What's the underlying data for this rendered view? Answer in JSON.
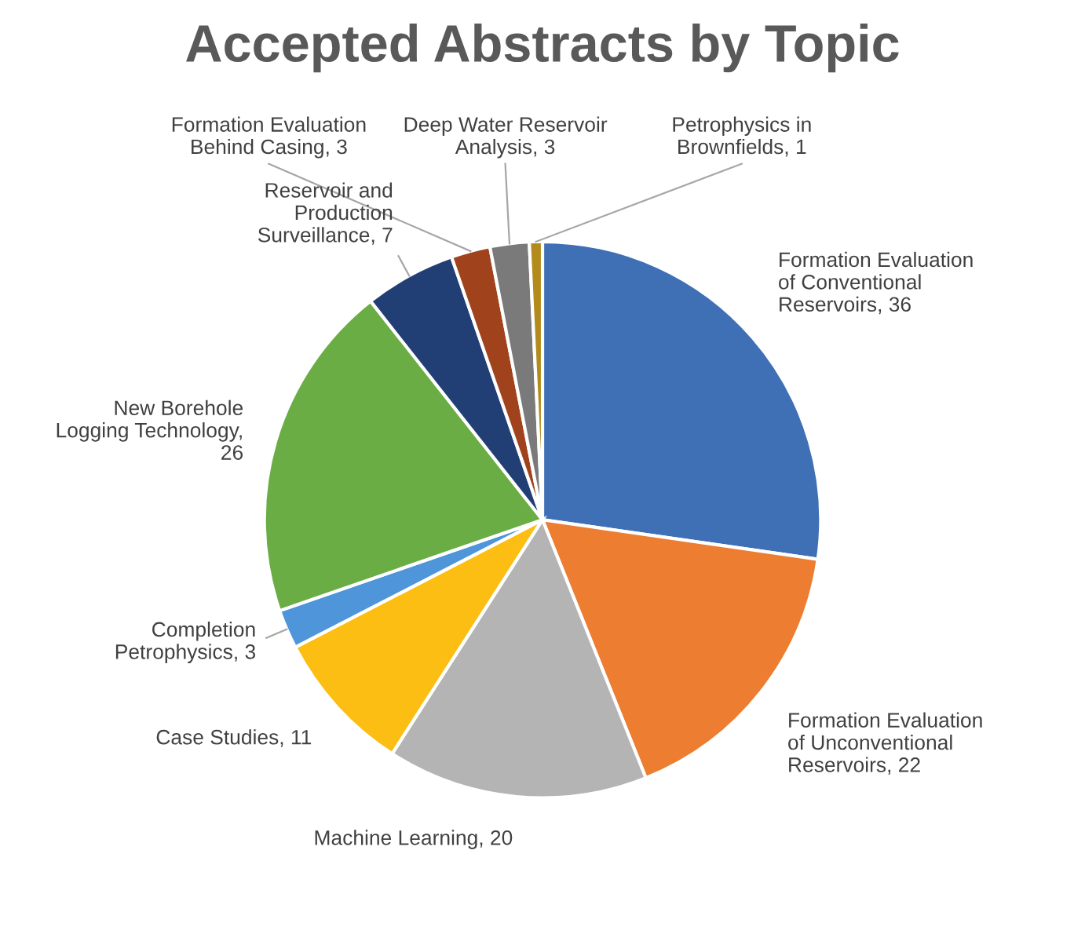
{
  "chart_data": {
    "type": "pie",
    "title": "Accepted Abstracts by Topic",
    "categories": [
      "Formation Evaluation\nof Conventional\nReservoirs, 36",
      "Formation Evaluation\nof Unconventional\nReservoirs, 22",
      "Machine Learning, 20",
      "Case Studies, 11",
      "Completion\nPetrophysics, 3",
      "New Borehole\nLogging Technology,\n26",
      "Reservoir and\nProduction\nSurveillance, 7",
      "Formation Evaluation\nBehind Casing, 3",
      "Deep Water Reservoir\nAnalysis, 3",
      "Petrophysics in\nBrownfields, 1"
    ],
    "values": [
      36,
      22,
      20,
      11,
      3,
      26,
      7,
      3,
      3,
      1
    ],
    "colors": [
      "#3f6fb5",
      "#ed7d31",
      "#b4b4b4",
      "#fcbe12",
      "#4e95d9",
      "#6aad45",
      "#223f75",
      "#a0431c",
      "#7a7a7a",
      "#b38a1c"
    ]
  }
}
